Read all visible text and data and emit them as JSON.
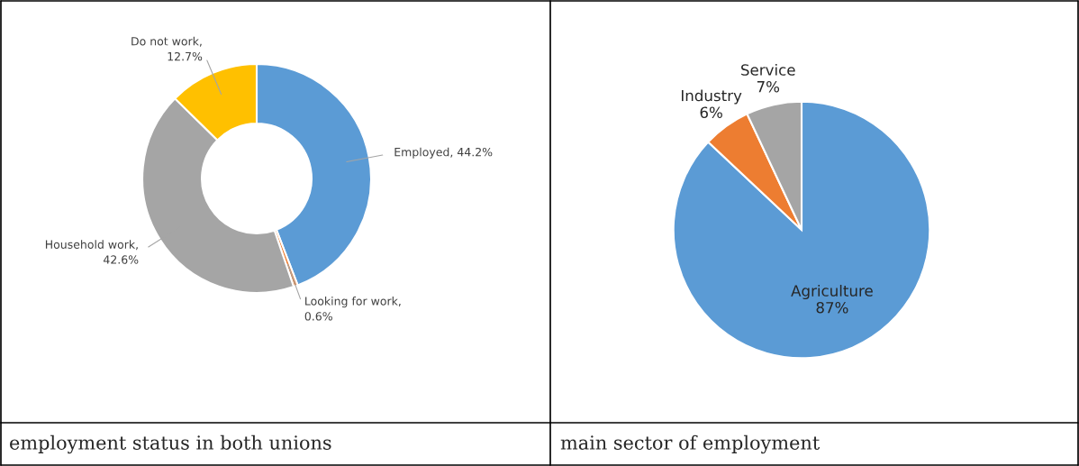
{
  "chart_data": [
    {
      "type": "donut",
      "categories": [
        null,
        null,
        null,
        null
      ],
      "values": [
        44.2,
        0.6,
        42.6,
        12.7
      ],
      "colors": [
        "#5b9bd5",
        "#ed7d31",
        "#a5a5a5",
        "#ffc000"
      ],
      "value_labels": [
        "Employed, 44.2%",
        "Looking for work, 0.6%",
        "Household work, 42.6%",
        "Do not work, 12.7%"
      ],
      "annotations": [
        "employment status in both unions"
      ]
    },
    {
      "type": "pie",
      "categories": [
        "Agriculture",
        "Industry",
        "Service"
      ],
      "values": [
        87,
        6,
        7
      ],
      "colors": [
        "#5b9bd5",
        "#ed7d31",
        "#a5a5a5"
      ],
      "value_labels": [
        "87%",
        "6%",
        "7%"
      ],
      "annotations": [
        "main sector of employment"
      ]
    }
  ]
}
